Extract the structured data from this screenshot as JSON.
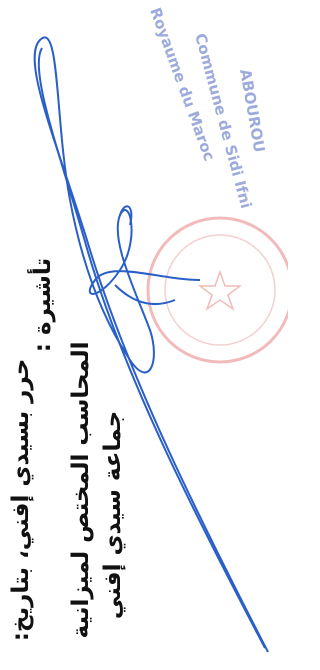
{
  "stamp": {
    "line1": "Royaume du Maroc",
    "line2": "Commune de Sidi Ifni",
    "line3": "ABOUROU"
  },
  "body": {
    "written_at": "حرر بسيدي إفني، بتاريخ:",
    "visa": "تأشيرة :",
    "accountant": "المحاسب المختص لميزانية",
    "commune": "جماعة سيدي إفني"
  }
}
